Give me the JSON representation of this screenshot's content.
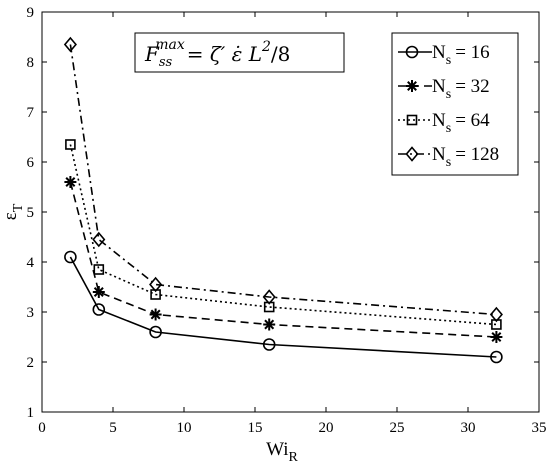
{
  "chart_data": {
    "type": "line",
    "xlabel": "Wi",
    "xlabel_sub": "R",
    "ylabel": "ε",
    "ylabel_sub": "T",
    "xlim": [
      0,
      35
    ],
    "ylim": [
      1,
      9
    ],
    "xticks": [
      0,
      5,
      10,
      15,
      20,
      25,
      30,
      35
    ],
    "yticks": [
      1,
      2,
      3,
      4,
      5,
      6,
      7,
      8,
      9
    ],
    "grid": false,
    "legend_position": "top-right",
    "annotation": {
      "lhs": "F",
      "lhs_sub": "ss",
      "lhs_sup": "max",
      "rhs": "= ζ′ ε̇ L",
      "rhs_sup": "2",
      "rhs_tail": "/8"
    },
    "x": [
      2,
      4,
      8,
      16,
      32
    ],
    "series": [
      {
        "name": "N",
        "name_sub": "s",
        "name_value": "= 16",
        "marker": "circle",
        "dash": "solid",
        "values": [
          4.1,
          3.05,
          2.6,
          2.35,
          2.1
        ]
      },
      {
        "name": "N",
        "name_sub": "s",
        "name_value": "= 32",
        "marker": "star",
        "dash": "dashed",
        "values": [
          5.6,
          3.4,
          2.95,
          2.75,
          2.5
        ]
      },
      {
        "name": "N",
        "name_sub": "s",
        "name_value": "= 64",
        "marker": "square",
        "dash": "dotted",
        "values": [
          6.35,
          3.85,
          3.35,
          3.1,
          2.75
        ]
      },
      {
        "name": "N",
        "name_sub": "s",
        "name_value": "= 128",
        "marker": "diamond",
        "dash": "dashdot",
        "values": [
          8.35,
          4.45,
          3.55,
          3.3,
          2.95
        ]
      }
    ]
  }
}
